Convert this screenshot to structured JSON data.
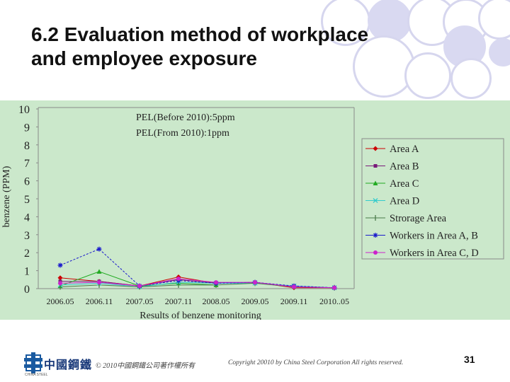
{
  "slide": {
    "title_line1": "6.2 Evaluation method of workplace",
    "title_line2": "and employee exposure",
    "page_number": "31",
    "copyright_cn": "© 2010中國鋼鐵公司著作權所有",
    "copyright_en": "Copyright 20010 by China Steel Corporation All rights reserved.",
    "logo_text": "中國鋼鐵",
    "logo_sub": "CHINA STEEL",
    "colors": {
      "chart_bg": "#cbe8cb",
      "circle": "#d6d6ee",
      "circle_fill": "#d9d9f1"
    }
  },
  "chart_data": {
    "type": "line",
    "ylabel": "benzene (PPM)",
    "xlabel": "Results of benzene monitoring",
    "annotations": [
      "PEL(Before 2010):5ppm",
      "PEL(From 2010):1ppm"
    ],
    "ylim": [
      0,
      10
    ],
    "yticks": [
      "0",
      "1",
      "2",
      "3",
      "4",
      "5",
      "6",
      "7",
      "8",
      "9",
      "10"
    ],
    "categories": [
      "2006.05",
      "2006.11",
      "2007.05",
      "2007.11",
      "2008.05",
      "2009.05",
      "2009.11",
      "2010..05"
    ],
    "legend_position": "right",
    "series": [
      {
        "name": "Area A",
        "color": "#cc0000",
        "marker": "diamond",
        "values": [
          0.6,
          0.4,
          0.15,
          0.65,
          0.3,
          0.35,
          0.05,
          0.05
        ]
      },
      {
        "name": "Area B",
        "color": "#7a1a7a",
        "marker": "square",
        "values": [
          0.4,
          0.4,
          0.15,
          0.5,
          0.3,
          0.35,
          0.1,
          null
        ]
      },
      {
        "name": "Area C",
        "color": "#22aa22",
        "marker": "triangle",
        "values": [
          0.15,
          0.95,
          0.15,
          0.3,
          0.2,
          null,
          null,
          null
        ]
      },
      {
        "name": "Area D",
        "color": "#33cccc",
        "marker": "x",
        "values": [
          0.2,
          0.3,
          0.1,
          0.35,
          0.3,
          0.3,
          0.15,
          0.05
        ]
      },
      {
        "name": "Strorage Area",
        "color": "#4a7a4a",
        "marker": "bar",
        "values": [
          0.1,
          0.2,
          0.1,
          0.2,
          0.2,
          0.3,
          0.1,
          0.05
        ]
      },
      {
        "name": "Workers in Area A, B",
        "color": "#1a1acc",
        "marker": "star",
        "values": [
          1.3,
          2.2,
          0.15,
          0.45,
          0.3,
          0.35,
          0.15,
          0.05
        ]
      },
      {
        "name": "Workers in Area C, D",
        "color": "#cc22cc",
        "marker": "circle",
        "values": [
          0.3,
          0.35,
          0.15,
          0.55,
          0.35,
          0.35,
          0.1,
          0.05
        ]
      }
    ]
  }
}
